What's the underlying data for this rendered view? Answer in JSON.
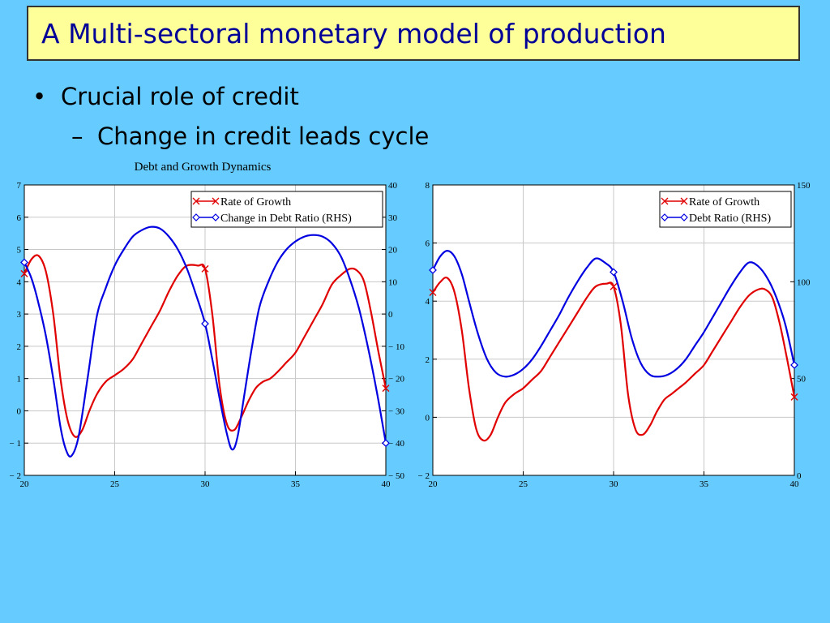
{
  "slide": {
    "title": "A Multi-sectoral monetary model of production",
    "bullet_marker": "•",
    "bullet": "Crucial role of credit",
    "sub_marker": "–",
    "sub_bullet": "Change in credit leads cycle",
    "figure_title": "Debt and Growth Dynamics"
  },
  "colors": {
    "background": "#66ccff",
    "title_fill": "#ffff99",
    "title_text": "#000099",
    "growth_series": "#e00000",
    "debt_series": "#0000e0",
    "grid": "#c8c8c8"
  },
  "chart_data": [
    {
      "type": "line",
      "title": "",
      "xlabel": "",
      "ylabel": "",
      "xlim": [
        20,
        40
      ],
      "xticks": [
        20,
        25,
        30,
        35,
        40
      ],
      "ylim": [
        -2,
        7
      ],
      "yticks": [
        -2,
        -1,
        0,
        1,
        2,
        3,
        4,
        5,
        6,
        7
      ],
      "ylim_right": [
        -50,
        40
      ],
      "yticks_right": [
        -50,
        -40,
        -30,
        -20,
        -10,
        0,
        10,
        20,
        30,
        40
      ],
      "grid": true,
      "legend_position": "top-right",
      "series": [
        {
          "name": "Rate of Growth",
          "axis": "left",
          "color": "#e00000",
          "marker": "x",
          "marker_x": [
            20,
            30,
            40
          ],
          "x": [
            20,
            20.4,
            20.8,
            21.2,
            21.6,
            22.0,
            22.4,
            22.8,
            23.2,
            23.6,
            24.0,
            24.5,
            25.0,
            25.5,
            26.0,
            26.5,
            27.0,
            27.5,
            28.0,
            28.5,
            29.0,
            29.6,
            30.0,
            30.4,
            30.8,
            31.2,
            31.6,
            32.0,
            32.4,
            32.8,
            33.2,
            33.6,
            34.0,
            34.5,
            35.0,
            35.5,
            36.0,
            36.5,
            37.0,
            37.5,
            38.0,
            38.4,
            38.8,
            39.2,
            39.6,
            40.0
          ],
          "y": [
            4.25,
            4.7,
            4.8,
            4.3,
            3.0,
            1.0,
            -0.3,
            -0.8,
            -0.6,
            0.0,
            0.5,
            0.9,
            1.1,
            1.3,
            1.6,
            2.1,
            2.6,
            3.1,
            3.7,
            4.2,
            4.5,
            4.5,
            4.4,
            3.0,
            0.8,
            -0.4,
            -0.6,
            -0.2,
            0.3,
            0.7,
            0.9,
            1.0,
            1.2,
            1.5,
            1.8,
            2.3,
            2.8,
            3.3,
            3.9,
            4.2,
            4.4,
            4.35,
            4.0,
            3.0,
            1.8,
            0.7
          ]
        },
        {
          "name": "Change in Debt Ratio (RHS)",
          "axis": "right",
          "color": "#0000e0",
          "marker": "diamond",
          "marker_x": [
            20,
            30,
            40
          ],
          "x": [
            20,
            20.4,
            20.8,
            21.2,
            21.6,
            22.0,
            22.3,
            22.6,
            23.0,
            23.5,
            24.0,
            24.5,
            25.0,
            25.5,
            26.0,
            26.5,
            27.0,
            27.5,
            28.0,
            28.5,
            29.0,
            29.5,
            30.0,
            30.4,
            30.8,
            31.2,
            31.5,
            31.8,
            32.2,
            32.6,
            33.0,
            33.5,
            34.0,
            34.5,
            35.0,
            35.5,
            36.0,
            36.5,
            37.0,
            37.5,
            38.0,
            38.5,
            39.0,
            39.5,
            40.0
          ],
          "y": [
            16,
            11,
            3,
            -7,
            -20,
            -35,
            -42,
            -44,
            -38,
            -20,
            -1,
            8,
            15,
            20,
            24,
            26,
            27,
            26.5,
            24,
            20,
            14,
            6,
            -3,
            -14,
            -26,
            -37,
            -42,
            -38,
            -24,
            -10,
            2,
            10,
            16,
            20,
            22.5,
            24,
            24.5,
            24,
            22,
            18,
            11,
            2,
            -10,
            -24,
            -40
          ]
        }
      ]
    },
    {
      "type": "line",
      "title": "",
      "xlabel": "",
      "ylabel": "",
      "xlim": [
        20,
        40
      ],
      "xticks": [
        20,
        25,
        30,
        35,
        40
      ],
      "ylim": [
        -2,
        8
      ],
      "yticks": [
        -2,
        0,
        2,
        4,
        6,
        8
      ],
      "ylim_right": [
        0,
        150
      ],
      "yticks_right": [
        0,
        50,
        100,
        150
      ],
      "grid": true,
      "legend_position": "top-right",
      "series": [
        {
          "name": "Rate of Growth",
          "axis": "left",
          "color": "#e00000",
          "marker": "x",
          "marker_x": [
            20,
            30,
            40
          ],
          "x": [
            20,
            20.4,
            20.8,
            21.2,
            21.6,
            22.0,
            22.4,
            22.8,
            23.2,
            23.6,
            24.0,
            24.5,
            25.0,
            25.5,
            26.0,
            26.5,
            27.0,
            27.5,
            28.0,
            28.5,
            29.0,
            29.6,
            30.0,
            30.4,
            30.8,
            31.2,
            31.6,
            32.0,
            32.4,
            32.8,
            33.2,
            33.6,
            34.0,
            34.5,
            35.0,
            35.5,
            36.0,
            36.5,
            37.0,
            37.5,
            38.0,
            38.4,
            38.8,
            39.2,
            39.6,
            40.0
          ],
          "y": [
            4.3,
            4.65,
            4.8,
            4.3,
            3.0,
            1.0,
            -0.4,
            -0.8,
            -0.6,
            0.0,
            0.5,
            0.8,
            1.0,
            1.3,
            1.6,
            2.1,
            2.6,
            3.1,
            3.6,
            4.1,
            4.5,
            4.6,
            4.5,
            3.2,
            0.8,
            -0.4,
            -0.6,
            -0.3,
            0.2,
            0.6,
            0.8,
            1.0,
            1.2,
            1.5,
            1.8,
            2.3,
            2.8,
            3.3,
            3.8,
            4.2,
            4.4,
            4.4,
            4.1,
            3.2,
            2.0,
            0.7
          ]
        },
        {
          "name": "Debt Ratio (RHS)",
          "axis": "right",
          "color": "#0000e0",
          "marker": "diamond",
          "marker_x": [
            20,
            30,
            40
          ],
          "x": [
            20,
            20.4,
            20.8,
            21.2,
            21.6,
            22.0,
            22.5,
            23.0,
            23.5,
            24.0,
            24.5,
            25.0,
            25.5,
            26.0,
            26.5,
            27.0,
            27.5,
            28.0,
            28.5,
            29.0,
            29.5,
            30.0,
            30.5,
            31.0,
            31.5,
            32.0,
            32.5,
            33.0,
            33.5,
            34.0,
            34.5,
            35.0,
            35.5,
            36.0,
            36.5,
            37.0,
            37.5,
            38.0,
            38.5,
            39.0,
            39.5,
            40.0
          ],
          "y": [
            106,
            113,
            116,
            113,
            104,
            90,
            73,
            60,
            53,
            51,
            52,
            55,
            60,
            67,
            75,
            83,
            92,
            100,
            107,
            112,
            110,
            105,
            90,
            71,
            58,
            52,
            51,
            52,
            55,
            60,
            67,
            74,
            82,
            90,
            98,
            105,
            110,
            108,
            102,
            92,
            78,
            57
          ]
        }
      ]
    }
  ]
}
